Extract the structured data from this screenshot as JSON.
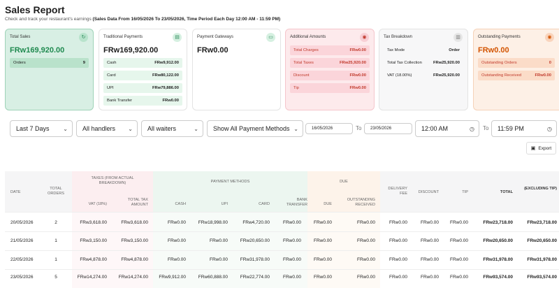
{
  "header": {
    "title": "Sales Report",
    "subtitle": "Check and track your restaurant's earnings",
    "period": "(Sales Data From 16/05/2026 To 23/05/2026, Time Period Each Day 12:00 AM - 11:59 PM)"
  },
  "cards": {
    "total_sales": {
      "title": "Total Sales",
      "value": "FRw169,920.00",
      "rows": [
        {
          "label": "Orders",
          "value": "9"
        }
      ]
    },
    "traditional": {
      "title": "Traditional Payments",
      "value": "FRw169,920.00",
      "rows": [
        {
          "label": "Cash",
          "value": "FRw9,912.00"
        },
        {
          "label": "Card",
          "value": "FRw80,122.00"
        },
        {
          "label": "UPI",
          "value": "FRw79,886.00"
        },
        {
          "label": "Bank Transfer",
          "value": "FRw0.00"
        }
      ]
    },
    "gateways": {
      "title": "Payment Gateways",
      "value": "FRw0.00"
    },
    "additional": {
      "title": "Additional Amounts",
      "rows": [
        {
          "label": "Total Charges",
          "value": "FRw0.00"
        },
        {
          "label": "Total Taxes",
          "value": "FRw25,920.00"
        },
        {
          "label": "Discount",
          "value": "FRw0.00"
        },
        {
          "label": "Tip",
          "value": "FRw0.00"
        }
      ]
    },
    "tax": {
      "title": "Tax Breakdown",
      "rows": [
        {
          "label": "Tax Mode",
          "value": "Order"
        },
        {
          "label": "Total Tax Collection",
          "value": "FRw25,920.00"
        },
        {
          "label": "VAT (18.00%)",
          "value": "FRw25,920.00"
        }
      ]
    },
    "outstanding": {
      "title": "Outstanding Payments",
      "value": "FRw0.00",
      "rows": [
        {
          "label": "Outstanding Orders",
          "value": "0"
        },
        {
          "label": "Outstanding Received",
          "value": "FRw0.00"
        }
      ]
    }
  },
  "filters": {
    "period": "Last 7 Days",
    "handlers": "All handlers",
    "waiters": "All waiters",
    "payment": "Show All Payment Methods",
    "date_from": "16/05/2026",
    "to1": "To",
    "date_to": "23/05/2026",
    "time_from": "12:00 AM",
    "to2": "To",
    "time_to": "11:59 PM",
    "export": "Export"
  },
  "table": {
    "groups": {
      "taxes": "TAXES (FROM ACTUAL BREAKDOWN)",
      "payment": "PAYMENT METHODS",
      "due": "DUE"
    },
    "headers": {
      "date": "DATE",
      "orders": "TOTAL ORDERS",
      "vat": "VAT (18%)",
      "tax_amount": "TOTAL TAX AMOUNT",
      "cash": "CASH",
      "upi": "UPI",
      "card": "CARD",
      "bank": "BANK TRANSFER",
      "due": "DUE",
      "outstanding": "OUTSTANDING RECEIVED",
      "delivery": "DELIVERY FEE",
      "discount": "DISCOUNT",
      "tip": "TIP",
      "total": "TOTAL",
      "excl": "(EXCLUDING TIP)"
    },
    "rows": [
      {
        "date": "20/05/2026",
        "orders": "2",
        "vat": "FRw3,618.00",
        "tax": "FRw3,618.00",
        "cash": "FRw0.00",
        "upi": "FRw18,998.00",
        "card": "FRw4,720.00",
        "bank": "FRw0.00",
        "due": "FRw0.00",
        "outstanding": "FRw0.00",
        "delivery": "FRw0.00",
        "discount": "FRw0.00",
        "tip": "FRw0.00",
        "total": "FRw23,718.00",
        "excl": "FRw23,718.00"
      },
      {
        "date": "21/05/2026",
        "orders": "1",
        "vat": "FRw3,150.00",
        "tax": "FRw3,150.00",
        "cash": "FRw0.00",
        "upi": "FRw0.00",
        "card": "FRw20,650.00",
        "bank": "FRw0.00",
        "due": "FRw0.00",
        "outstanding": "FRw0.00",
        "delivery": "FRw0.00",
        "discount": "FRw0.00",
        "tip": "FRw0.00",
        "total": "FRw20,650.00",
        "excl": "FRw20,650.00"
      },
      {
        "date": "22/05/2026",
        "orders": "1",
        "vat": "FRw4,878.00",
        "tax": "FRw4,878.00",
        "cash": "FRw0.00",
        "upi": "FRw0.00",
        "card": "FRw31,978.00",
        "bank": "FRw0.00",
        "due": "FRw0.00",
        "outstanding": "FRw0.00",
        "delivery": "FRw0.00",
        "discount": "FRw0.00",
        "tip": "FRw0.00",
        "total": "FRw31,978.00",
        "excl": "FRw31,978.00"
      },
      {
        "date": "23/05/2026",
        "orders": "5",
        "vat": "FRw14,274.00",
        "tax": "FRw14,274.00",
        "cash": "FRw9,912.00",
        "upi": "FRw60,888.00",
        "card": "FRw22,774.00",
        "bank": "FRw0.00",
        "due": "FRw0.00",
        "outstanding": "FRw0.00",
        "delivery": "FRw0.00",
        "discount": "FRw0.00",
        "tip": "FRw0.00",
        "total": "FRw93,574.00",
        "excl": "FRw93,574.00"
      }
    ]
  }
}
